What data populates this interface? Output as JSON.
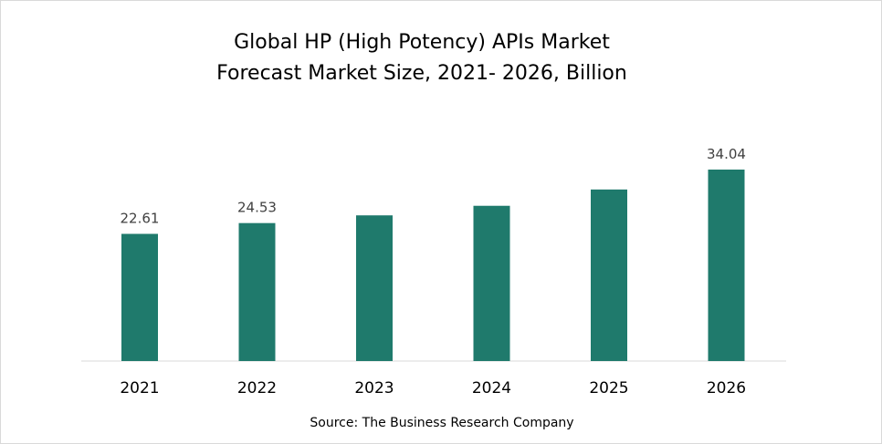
{
  "chart_data": {
    "type": "bar",
    "title_line1": "Global HP (High Potency) APIs Market",
    "title_line2": "Forecast Market Size, 2021- 2026, Billion",
    "categories": [
      "2021",
      "2022",
      "2023",
      "2024",
      "2025",
      "2026"
    ],
    "values": [
      22.61,
      24.53,
      25.9,
      27.6,
      30.5,
      34.04
    ],
    "data_labels": [
      "22.61",
      "24.53",
      "",
      "",
      "",
      "34.04"
    ],
    "bar_color": "#1f7a6c",
    "axis_color": "#d9d9d9",
    "ylim": [
      0,
      34.04
    ],
    "grid": false,
    "legend": "none"
  },
  "source": "Source: The Business Research Company"
}
